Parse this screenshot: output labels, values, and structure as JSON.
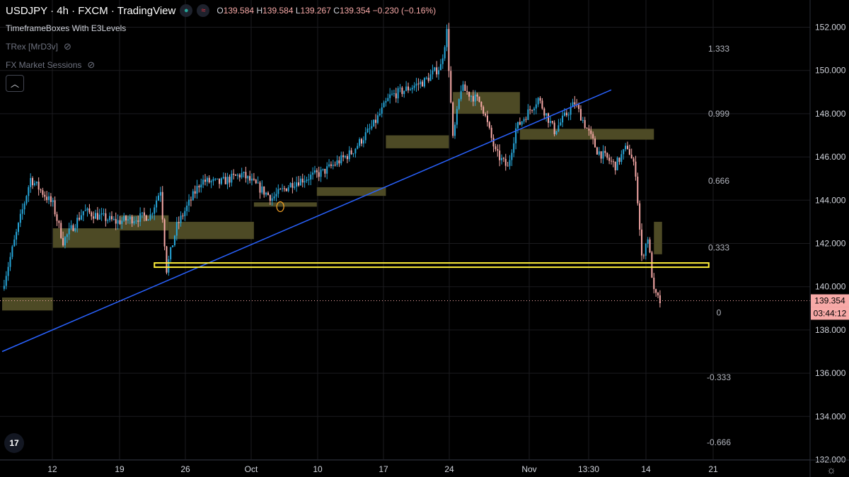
{
  "legend": {
    "symbol": "USDJPY · 4h · FXCM · TradingView",
    "ohlc": {
      "o_label": "O",
      "o": "139.584",
      "h_label": "H",
      "h": "139.584",
      "l_label": "L",
      "l": "139.267",
      "c_label": "C",
      "c": "139.354",
      "chg": "−0.230 (−0.16%)"
    },
    "indicators": [
      {
        "name": "TimeframeBoxes With E3Levels",
        "hidden": false
      },
      {
        "name": "TRex [MrD3v]",
        "hidden": true
      },
      {
        "name": "FX Market Sessions",
        "hidden": true
      }
    ],
    "collapse_icon": "chevron-up-icon"
  },
  "colors": {
    "background": "#000000",
    "grid": "#1b1b1f",
    "up": "#26a6d9",
    "down": "#f7a9a7",
    "trendline": "#2962ff",
    "box": "#4d4a25",
    "level_line": "#ffef3a",
    "price_tag": "#f7a9a7"
  },
  "price_tag": {
    "price": "139.354",
    "countdown": "03:44:12"
  },
  "chart_data": {
    "type": "candlestick",
    "symbol": "USDJPY",
    "timeframe": "4h",
    "ylim": [
      132,
      152.5
    ],
    "y_ticks": [
      "152.000",
      "150.000",
      "148.000",
      "146.000",
      "144.000",
      "142.000",
      "140.000",
      "138.000",
      "136.000",
      "134.000",
      "132.000"
    ],
    "x_ticks": [
      "12",
      "19",
      "26",
      "Oct",
      "10",
      "17",
      "24",
      "Nov",
      "13:30",
      "14",
      "21"
    ],
    "fib_levels": [
      {
        "label": "1.333",
        "price": 151.0
      },
      {
        "label": "0.999",
        "price": 148.0
      },
      {
        "label": "0.666",
        "price": 144.9
      },
      {
        "label": "0.333",
        "price": 141.8
      },
      {
        "label": "0",
        "price": 138.8
      },
      {
        "label": "-0.333",
        "price": 135.8
      },
      {
        "label": "-0.666",
        "price": 132.8
      }
    ],
    "path_anchors": [
      {
        "t": 0,
        "p": 139.9
      },
      {
        "t": 14,
        "p": 145.0
      },
      {
        "t": 25,
        "p": 143.8
      },
      {
        "t": 30,
        "p": 142.1
      },
      {
        "t": 40,
        "p": 143.5
      },
      {
        "t": 56,
        "p": 143.0
      },
      {
        "t": 73,
        "p": 143.3
      },
      {
        "t": 78,
        "p": 144.5
      },
      {
        "t": 81,
        "p": 140.8
      },
      {
        "t": 86,
        "p": 142.8
      },
      {
        "t": 98,
        "p": 144.9
      },
      {
        "t": 107,
        "p": 144.8
      },
      {
        "t": 118,
        "p": 145.2
      },
      {
        "t": 133,
        "p": 144.1
      },
      {
        "t": 143,
        "p": 144.8
      },
      {
        "t": 158,
        "p": 145.3
      },
      {
        "t": 172,
        "p": 146.2
      },
      {
        "t": 183,
        "p": 147.5
      },
      {
        "t": 191,
        "p": 148.8
      },
      {
        "t": 208,
        "p": 149.5
      },
      {
        "t": 216,
        "p": 150.2
      },
      {
        "t": 219,
        "p": 151.8
      },
      {
        "t": 222,
        "p": 146.8
      },
      {
        "t": 226,
        "p": 149.2
      },
      {
        "t": 236,
        "p": 148.5
      },
      {
        "t": 243,
        "p": 146.2
      },
      {
        "t": 249,
        "p": 145.5
      },
      {
        "t": 253,
        "p": 147.3
      },
      {
        "t": 264,
        "p": 148.7
      },
      {
        "t": 272,
        "p": 147.2
      },
      {
        "t": 282,
        "p": 148.5
      },
      {
        "t": 293,
        "p": 146.3
      },
      {
        "t": 302,
        "p": 145.6
      },
      {
        "t": 308,
        "p": 146.5
      },
      {
        "t": 312,
        "p": 145.3
      },
      {
        "t": 315,
        "p": 141.3
      },
      {
        "t": 318,
        "p": 142.3
      },
      {
        "t": 321,
        "p": 139.7
      },
      {
        "t": 324,
        "p": 139.3
      }
    ],
    "boxes": [
      {
        "t0": 0,
        "t1": 25,
        "p0": 138.9,
        "p1": 139.5
      },
      {
        "t0": 25,
        "t1": 58,
        "p0": 141.8,
        "p1": 142.7
      },
      {
        "t0": 58,
        "t1": 82,
        "p0": 142.6,
        "p1": 143.3
      },
      {
        "t0": 82,
        "t1": 124,
        "p0": 142.2,
        "p1": 143.0
      },
      {
        "t0": 124,
        "t1": 155,
        "p0": 143.7,
        "p1": 143.9
      },
      {
        "t0": 155,
        "t1": 189,
        "p0": 144.2,
        "p1": 144.6
      },
      {
        "t0": 189,
        "t1": 220,
        "p0": 146.4,
        "p1": 147.0
      },
      {
        "t0": 222,
        "t1": 255,
        "p0": 148.0,
        "p1": 149.0
      },
      {
        "t0": 255,
        "t1": 321,
        "p0": 146.8,
        "p1": 147.3
      },
      {
        "t0": 321,
        "t1": 325,
        "p0": 141.5,
        "p1": 143.0
      }
    ],
    "trendline": {
      "t0": 0,
      "p0": 137.0,
      "t1": 300,
      "p1": 149.1
    },
    "support_level": {
      "t0": 75,
      "t1": 348,
      "price": 141.0
    },
    "current_price": 139.354,
    "marker": {
      "t": 137,
      "p": 143.7
    }
  }
}
